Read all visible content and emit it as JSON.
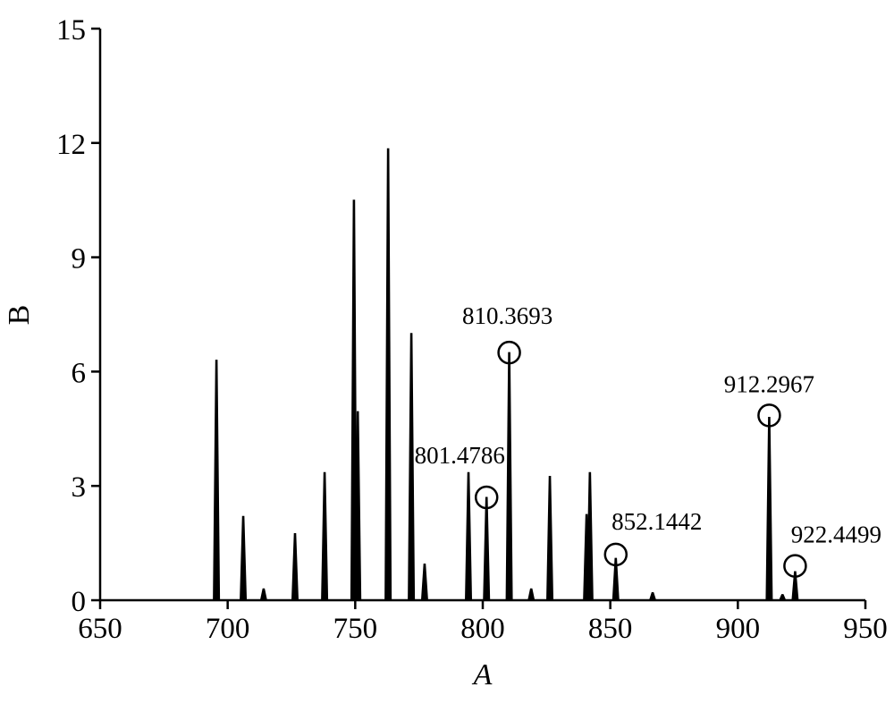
{
  "chart_data": {
    "type": "spectrum",
    "x_label": "A",
    "y_label": "B",
    "x": [
      695.6,
      706.1,
      714.1,
      726.4,
      738,
      749.5,
      751,
      762.9,
      772,
      777.2,
      794.4,
      801.4786,
      810.3693,
      819,
      826.3,
      840.7,
      842,
      852.1442,
      866.6,
      912.2967,
      917.5,
      922.4499
    ],
    "values": [
      6.3,
      2.2,
      0.3,
      1.75,
      3.35,
      10.5,
      4.95,
      11.85,
      7.0,
      0.95,
      3.35,
      2.7,
      6.5,
      0.3,
      3.25,
      2.25,
      3.35,
      1.1,
      0.2,
      4.8,
      0.15,
      0.75
    ],
    "color": "#000000",
    "annotations": [
      {
        "text": "801.4786",
        "x": 801.4786,
        "y": 2.7
      },
      {
        "text": "810.3693",
        "x": 810.3693,
        "y": 6.5
      },
      {
        "text": "852.1442",
        "x": 852.1442,
        "y": 1.2
      },
      {
        "text": "912.2967",
        "x": 912.2967,
        "y": 4.85
      },
      {
        "text": "922.4499",
        "x": 922.4499,
        "y": 0.9
      }
    ],
    "xlim": [
      650,
      950
    ],
    "xticks": [
      650,
      700,
      750,
      800,
      850,
      900,
      950
    ],
    "ylim": [
      0,
      15
    ],
    "yticks": [
      0,
      3,
      6,
      9,
      12,
      15
    ],
    "grid": false
  }
}
